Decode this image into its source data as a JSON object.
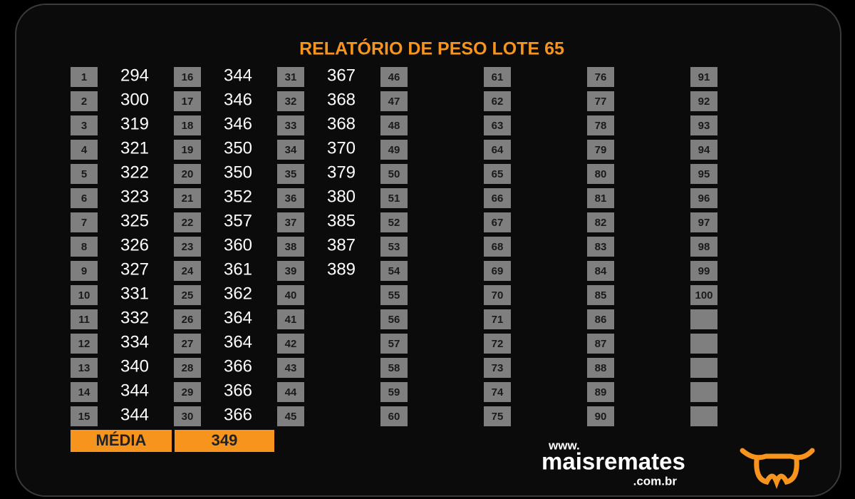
{
  "title": "RELATÓRIO DE PESO LOTE 65",
  "entries": [
    {
      "number": 1,
      "weight": 294
    },
    {
      "number": 2,
      "weight": 300
    },
    {
      "number": 3,
      "weight": 319
    },
    {
      "number": 4,
      "weight": 321
    },
    {
      "number": 5,
      "weight": 322
    },
    {
      "number": 6,
      "weight": 323
    },
    {
      "number": 7,
      "weight": 325
    },
    {
      "number": 8,
      "weight": 326
    },
    {
      "number": 9,
      "weight": 327
    },
    {
      "number": 10,
      "weight": 331
    },
    {
      "number": 11,
      "weight": 332
    },
    {
      "number": 12,
      "weight": 334
    },
    {
      "number": 13,
      "weight": 340
    },
    {
      "number": 14,
      "weight": 344
    },
    {
      "number": 15,
      "weight": 344
    },
    {
      "number": 16,
      "weight": 344
    },
    {
      "number": 17,
      "weight": 346
    },
    {
      "number": 18,
      "weight": 346
    },
    {
      "number": 19,
      "weight": 350
    },
    {
      "number": 20,
      "weight": 350
    },
    {
      "number": 21,
      "weight": 352
    },
    {
      "number": 22,
      "weight": 357
    },
    {
      "number": 23,
      "weight": 360
    },
    {
      "number": 24,
      "weight": 361
    },
    {
      "number": 25,
      "weight": 362
    },
    {
      "number": 26,
      "weight": 364
    },
    {
      "number": 27,
      "weight": 364
    },
    {
      "number": 28,
      "weight": 366
    },
    {
      "number": 29,
      "weight": 366
    },
    {
      "number": 30,
      "weight": 366
    },
    {
      "number": 31,
      "weight": 367
    },
    {
      "number": 32,
      "weight": 368
    },
    {
      "number": 33,
      "weight": 368
    },
    {
      "number": 34,
      "weight": 370
    },
    {
      "number": 35,
      "weight": 379
    },
    {
      "number": 36,
      "weight": 380
    },
    {
      "number": 37,
      "weight": 385
    },
    {
      "number": 38,
      "weight": 387
    },
    {
      "number": 39,
      "weight": 389
    },
    {
      "number": 40
    },
    {
      "number": 41
    },
    {
      "number": 42
    },
    {
      "number": 43
    },
    {
      "number": 44
    },
    {
      "number": 45
    },
    {
      "number": 46
    },
    {
      "number": 47
    },
    {
      "number": 48
    },
    {
      "number": 49
    },
    {
      "number": 50
    },
    {
      "number": 51
    },
    {
      "number": 52
    },
    {
      "number": 53
    },
    {
      "number": 54
    },
    {
      "number": 55
    },
    {
      "number": 56
    },
    {
      "number": 57
    },
    {
      "number": 58
    },
    {
      "number": 59
    },
    {
      "number": 60
    },
    {
      "number": 61
    },
    {
      "number": 62
    },
    {
      "number": 63
    },
    {
      "number": 64
    },
    {
      "number": 65
    },
    {
      "number": 66
    },
    {
      "number": 67
    },
    {
      "number": 68
    },
    {
      "number": 69
    },
    {
      "number": 70
    },
    {
      "number": 71
    },
    {
      "number": 72
    },
    {
      "number": 73
    },
    {
      "number": 74
    },
    {
      "number": 75
    },
    {
      "number": 76
    },
    {
      "number": 77
    },
    {
      "number": 78
    },
    {
      "number": 79
    },
    {
      "number": 80
    },
    {
      "number": 81
    },
    {
      "number": 82
    },
    {
      "number": 83
    },
    {
      "number": 84
    },
    {
      "number": 85
    },
    {
      "number": 86
    },
    {
      "number": 87
    },
    {
      "number": 88
    },
    {
      "number": 89
    },
    {
      "number": 90
    },
    {
      "number": 91
    },
    {
      "number": 92
    },
    {
      "number": 93
    },
    {
      "number": 94
    },
    {
      "number": 95
    },
    {
      "number": 96
    },
    {
      "number": 97
    },
    {
      "number": 98
    },
    {
      "number": 99
    },
    {
      "number": 100
    }
  ],
  "average": {
    "label": "MÉDIA",
    "value": 349
  },
  "logo": {
    "prefix": "www.",
    "name": "maisremates",
    "suffix": ".com.br"
  }
}
